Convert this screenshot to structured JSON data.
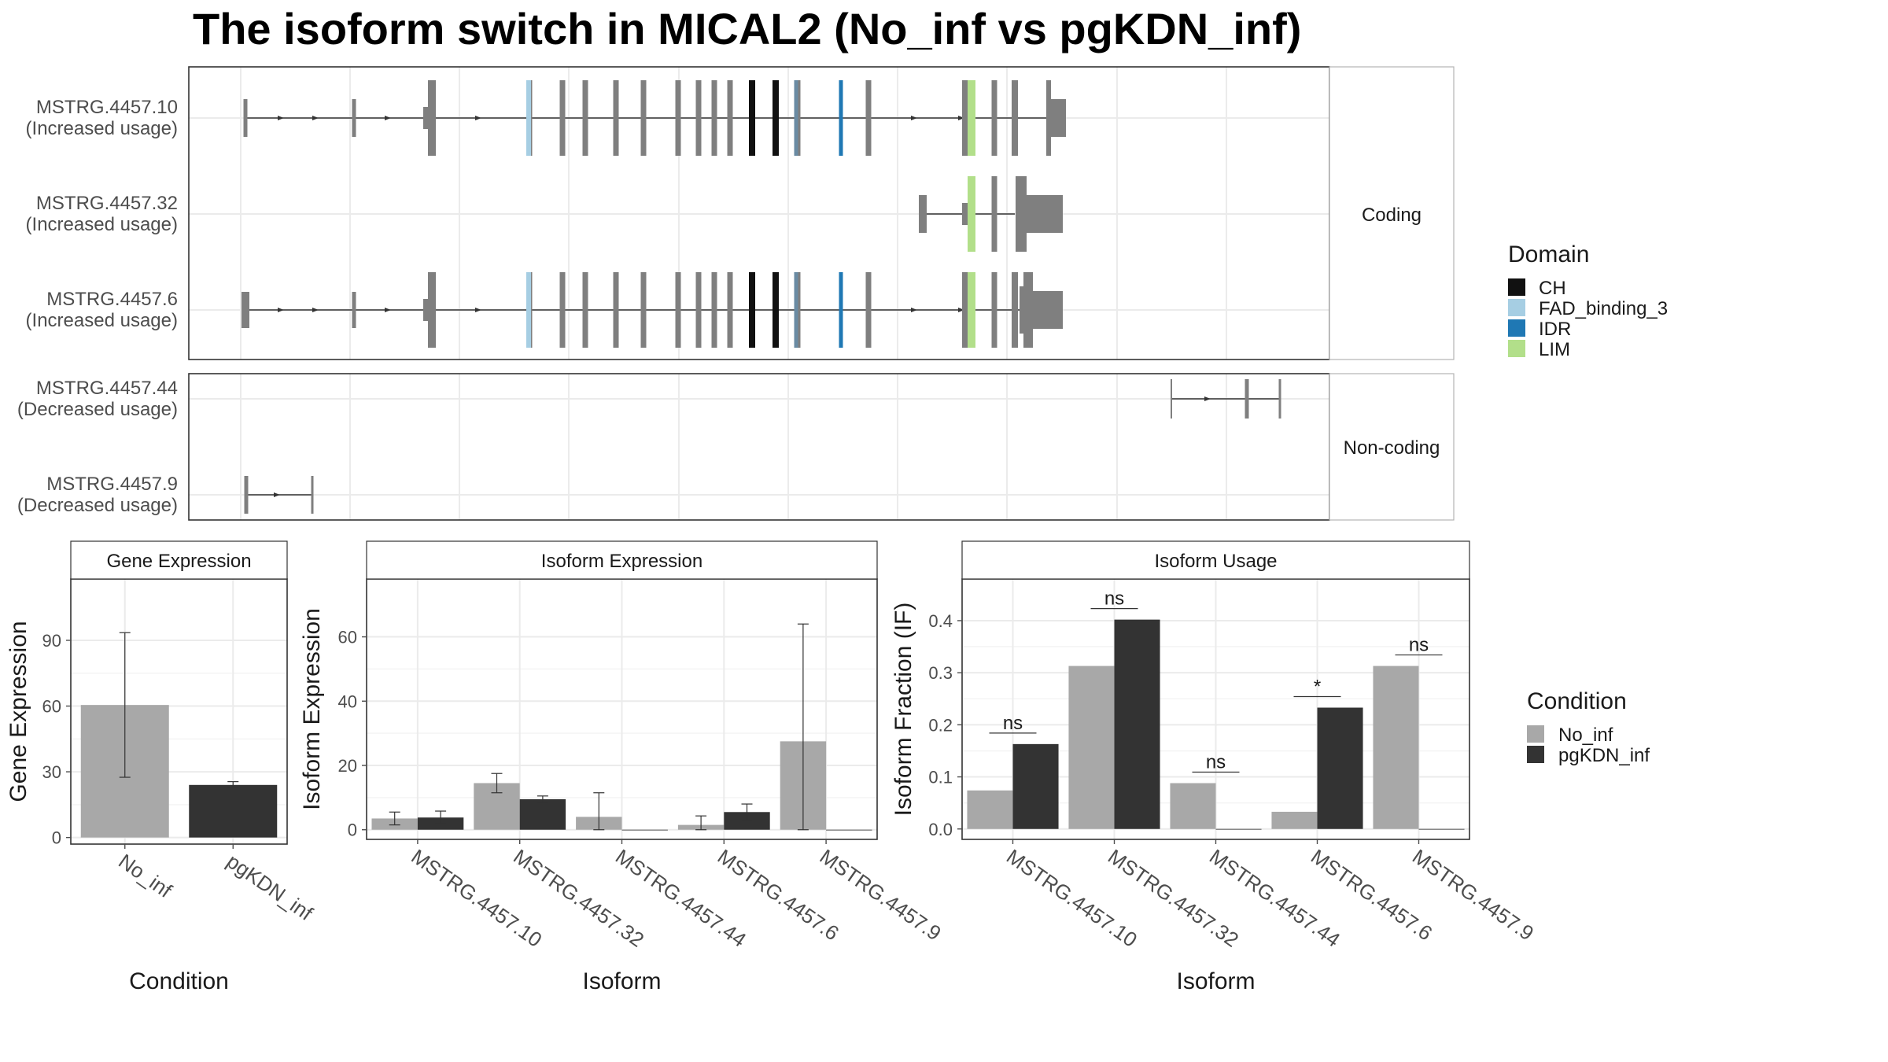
{
  "chart_data": [
    {
      "type": "gene_structure",
      "title": "The isoform switch in MICAL2 (No_inf vs pgKDN_inf)",
      "facets": [
        "Coding",
        "Non-coding"
      ],
      "isoforms": [
        {
          "id": "MSTRG.4457.10",
          "usage": "(Increased usage)",
          "group": "Coding"
        },
        {
          "id": "MSTRG.4457.32",
          "usage": "(Increased usage)",
          "group": "Coding"
        },
        {
          "id": "MSTRG.4457.6",
          "usage": "(Increased usage)",
          "group": "Coding"
        },
        {
          "id": "MSTRG.4457.44",
          "usage": "(Decreased usage)",
          "group": "Non-coding"
        },
        {
          "id": "MSTRG.4457.9",
          "usage": "(Decreased usage)",
          "group": "Non-coding"
        }
      ],
      "legend": {
        "title": "Domain",
        "items": [
          {
            "label": "CH",
            "color": "#111111"
          },
          {
            "label": "FAD_binding_3",
            "color": "#a6cee3"
          },
          {
            "label": "IDR",
            "color": "#1f78b4"
          },
          {
            "label": "LIM",
            "color": "#b2df8a"
          }
        ]
      }
    },
    {
      "type": "bar",
      "panel": "Gene Expression",
      "xlabel": "Condition",
      "ylabel": "Gene Expression",
      "categories": [
        "No_inf",
        "pgKDN_inf"
      ],
      "values": [
        60.5,
        24
      ],
      "error_low": [
        27.5,
        22.5
      ],
      "error_high": [
        93.5,
        25.5
      ],
      "ylim": [
        -3,
        118
      ],
      "yticks": [
        0,
        30,
        60,
        90
      ],
      "colors": [
        "#a8a8a8",
        "#333333"
      ]
    },
    {
      "type": "bar",
      "panel": "Isoform Expression",
      "xlabel": "Isoform",
      "ylabel": "Isoform Expression",
      "categories": [
        "MSTRG.4457.10",
        "MSTRG.4457.32",
        "MSTRG.4457.44",
        "MSTRG.4457.6",
        "MSTRG.4457.9"
      ],
      "series": [
        {
          "name": "No_inf",
          "values": [
            3.5,
            14.5,
            4,
            1.5,
            27.5
          ],
          "error_low": [
            1.5,
            11.5,
            0,
            0,
            0
          ],
          "error_high": [
            5.5,
            17.5,
            11.5,
            4.3,
            64
          ]
        },
        {
          "name": "pgKDN_inf",
          "values": [
            3.8,
            9.5,
            0,
            5.5,
            0
          ],
          "error_low": [
            1.8,
            8.5,
            0,
            3,
            0
          ],
          "error_high": [
            5.8,
            10.5,
            0,
            8,
            0
          ]
        }
      ],
      "ylim": [
        -3,
        78
      ],
      "yticks": [
        0,
        20,
        40,
        60
      ]
    },
    {
      "type": "bar",
      "panel": "Isoform Usage",
      "xlabel": "Isoform",
      "ylabel": "Isoform Fraction (IF)",
      "categories": [
        "MSTRG.4457.10",
        "MSTRG.4457.32",
        "MSTRG.4457.44",
        "MSTRG.4457.6",
        "MSTRG.4457.9"
      ],
      "series": [
        {
          "name": "No_inf",
          "values": [
            0.074,
            0.313,
            0.088,
            0.033,
            0.313
          ]
        },
        {
          "name": "pgKDN_inf",
          "values": [
            0.163,
            0.402,
            0,
            0.233,
            0
          ]
        }
      ],
      "significance": [
        "ns",
        "ns",
        "ns",
        "*",
        "ns"
      ],
      "ylim": [
        -0.02,
        0.48
      ],
      "yticks": [
        0.0,
        0.1,
        0.2,
        0.3,
        0.4
      ],
      "legend": {
        "title": "Condition",
        "items": [
          "No_inf",
          "pgKDN_inf"
        ]
      },
      "colors": [
        "#a8a8a8",
        "#333333"
      ]
    }
  ]
}
